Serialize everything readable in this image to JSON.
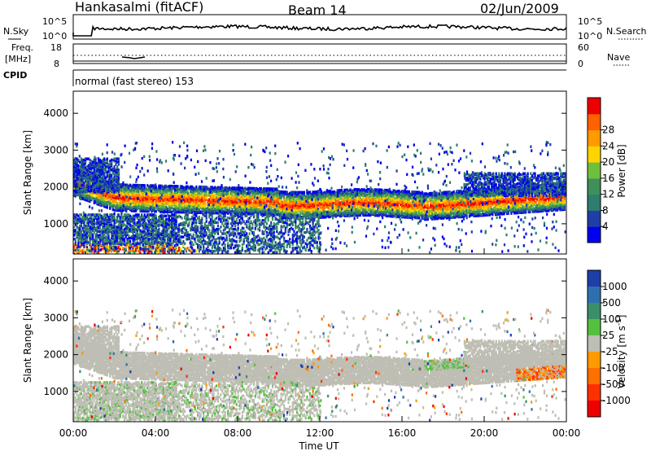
{
  "header": {
    "station": "Hankasalmi (fitACF)",
    "beam": "Beam 14",
    "date": "02/Jun/2009"
  },
  "top_panels": {
    "nsky_label": "N.Sky",
    "nsky_ticks": [
      "10^5",
      "10^0"
    ],
    "nsearch_label": "N.Search",
    "nsearch_ticks": [
      "10^5",
      "10^0"
    ],
    "freq_label": "Freq.",
    "freq_unit": "[MHz]",
    "freq_ticks": [
      "18",
      "8"
    ],
    "nave_label": "Nave",
    "nave_ticks": [
      "60",
      "0"
    ],
    "cpid_label": "CPID",
    "cpid_text": "normal (fast stereo) 153"
  },
  "chart_data": [
    {
      "type": "heatmap",
      "name": "power",
      "ylabel": "Slant Range [km]",
      "ylim": [
        180,
        4600
      ],
      "yticks": [
        "1000",
        "2000",
        "3000",
        "4000"
      ],
      "xlim": [
        "00:00",
        "24:00"
      ],
      "colorbar": {
        "label": "Power [dB]",
        "ticks": [
          "4",
          "8",
          "12",
          "16",
          "20",
          "24",
          "28"
        ],
        "colors": [
          "#0000ee",
          "#1e3fa8",
          "#2e7d6e",
          "#3f8f5a",
          "#6fbf3f",
          "#ffd400",
          "#ff9a00",
          "#ff6000",
          "#ee0000"
        ]
      }
    },
    {
      "type": "heatmap",
      "name": "velocity",
      "ylabel": "Slant Range [km]",
      "ylim": [
        180,
        4600
      ],
      "yticks": [
        "1000",
        "2000",
        "3000",
        "4000"
      ],
      "xlabel": "Time UT",
      "xticks": [
        "00:00",
        "04:00",
        "08:00",
        "12:00",
        "16:00",
        "20:00",
        "00:00"
      ],
      "colorbar": {
        "label": "Velocity [m s",
        "label_sup": "-1",
        "label_end": "]",
        "ticks": [
          "1000",
          "500",
          "100",
          "25",
          "-25",
          "-100",
          "-500",
          "-1000"
        ],
        "colors": [
          "#1e3fa8",
          "#2f6fb0",
          "#3a8f6a",
          "#55c040",
          "#bebeb4",
          "#ff9a00",
          "#ff7000",
          "#ff3000",
          "#ee0000"
        ]
      }
    }
  ]
}
